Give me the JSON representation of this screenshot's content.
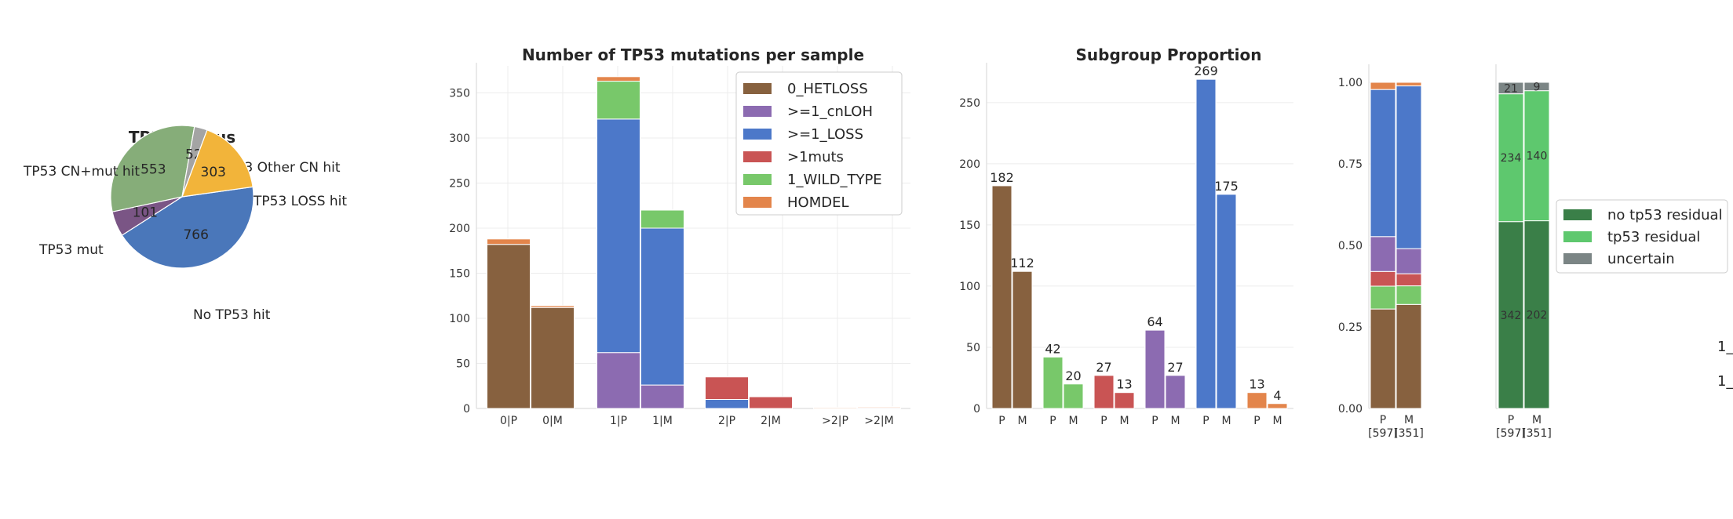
{
  "colors": {
    "0_HETLOSS": "#87613f",
    ">=1_cnLOH": "#8c6bb1",
    ">=1_LOSS": "#4c78c9",
    ">1muts": "#c95454",
    "1_WILD_TYPE": "#78c86a",
    "HOMDEL": "#e3854b",
    "no_residual": "#3a7f48",
    "tp53_residual": "#5ec86e",
    "uncertain": "#7b8585",
    "pie_cn_mut": "#86ad79",
    "pie_other": "#a4a4a4",
    "pie_loss": "#f2b43a",
    "pie_no": "#4a77ba",
    "pie_mut": "#7a5585"
  },
  "chart_data": [
    {
      "type": "pie",
      "title": "TP53 Status",
      "slices": [
        {
          "label": "TP53 CN+mut hit",
          "value": 553
        },
        {
          "label": "TP53 Other CN hit",
          "value": 52
        },
        {
          "label": "TP53 LOSS hit",
          "value": 303
        },
        {
          "label": "No TP53 hit",
          "value": 766
        },
        {
          "label": "TP53 mut",
          "value": 101
        }
      ]
    },
    {
      "type": "bar",
      "stacked": true,
      "title": "Number of TP53 mutations per sample",
      "categories": [
        "0|P",
        "0|M",
        "1|P",
        "1|M",
        "2|P",
        "2|M",
        ">2|P",
        ">2|M"
      ],
      "ylim": [
        0,
        380
      ],
      "yticks": [
        0,
        50,
        100,
        150,
        200,
        250,
        300,
        350
      ],
      "legend_position": "top-right",
      "series": [
        {
          "name": "0_HETLOSS",
          "values": [
            182,
            112,
            0,
            0,
            0,
            0,
            0,
            0
          ]
        },
        {
          "name": ">=1_cnLOH",
          "values": [
            0,
            0,
            62,
            26,
            0,
            0,
            0,
            0
          ]
        },
        {
          "name": ">=1_LOSS",
          "values": [
            0,
            0,
            259,
            174,
            10,
            0,
            0,
            0
          ]
        },
        {
          "name": ">1muts",
          "values": [
            0,
            0,
            0,
            0,
            25,
            13,
            0,
            1
          ]
        },
        {
          "name": "1_WILD_TYPE",
          "values": [
            0,
            0,
            42,
            20,
            0,
            0,
            0,
            0
          ]
        },
        {
          "name": "HOMDEL",
          "values": [
            6,
            2,
            5,
            0,
            0,
            0,
            1,
            1
          ]
        }
      ]
    },
    {
      "type": "bar",
      "title": "Subgroup Proportion",
      "ylim": [
        0,
        280
      ],
      "yticks": [
        0,
        50,
        100,
        150,
        200,
        250
      ],
      "groups": [
        {
          "series": "0_HETLOSS",
          "P": 182,
          "M": 112
        },
        {
          "series": "1_WILD_TYPE",
          "P": 42,
          "M": 20
        },
        {
          "series": ">1muts",
          "P": 27,
          "M": 13
        },
        {
          "series": ">=1_cnLOH",
          "P": 64,
          "M": 27
        },
        {
          "series": ">=1_LOSS",
          "P": 269,
          "M": 175
        },
        {
          "series": "HOMDEL",
          "P": 13,
          "M": 4
        }
      ]
    },
    {
      "type": "bar",
      "stacked": true,
      "normalized": true,
      "categories": [
        "P",
        "M"
      ],
      "category_sublabels": [
        "[597]",
        "[351]"
      ],
      "ylim": [
        0,
        1
      ],
      "yticks": [
        "0.00",
        "0.25",
        "0.50",
        "0.75",
        "1.00"
      ],
      "series": [
        {
          "name": "0_HETLOSS",
          "values": [
            0.305,
            0.319
          ]
        },
        {
          "name": "1_WILD_TYPE",
          "values": [
            0.07,
            0.057
          ]
        },
        {
          "name": ">1muts",
          "values": [
            0.045,
            0.037
          ]
        },
        {
          "name": ">=1_cnLOH",
          "values": [
            0.107,
            0.077
          ]
        },
        {
          "name": ">=1_LOSS",
          "values": [
            0.451,
            0.499
          ]
        },
        {
          "name": "HOMDEL",
          "values": [
            0.022,
            0.011
          ]
        }
      ]
    },
    {
      "type": "bar",
      "stacked": true,
      "normalized": true,
      "categories": [
        "P",
        "M"
      ],
      "category_sublabels": [
        "[597]",
        "[351]"
      ],
      "legend_position": "right",
      "series": [
        {
          "name": "no tp53 residual",
          "counts": [
            342,
            202
          ]
        },
        {
          "name": "tp53 residual",
          "counts": [
            234,
            140
          ]
        },
        {
          "name": "uncertain",
          "counts": [
            21,
            9
          ]
        }
      ]
    }
  ],
  "clipped_labels": [
    "1_",
    "1_"
  ]
}
